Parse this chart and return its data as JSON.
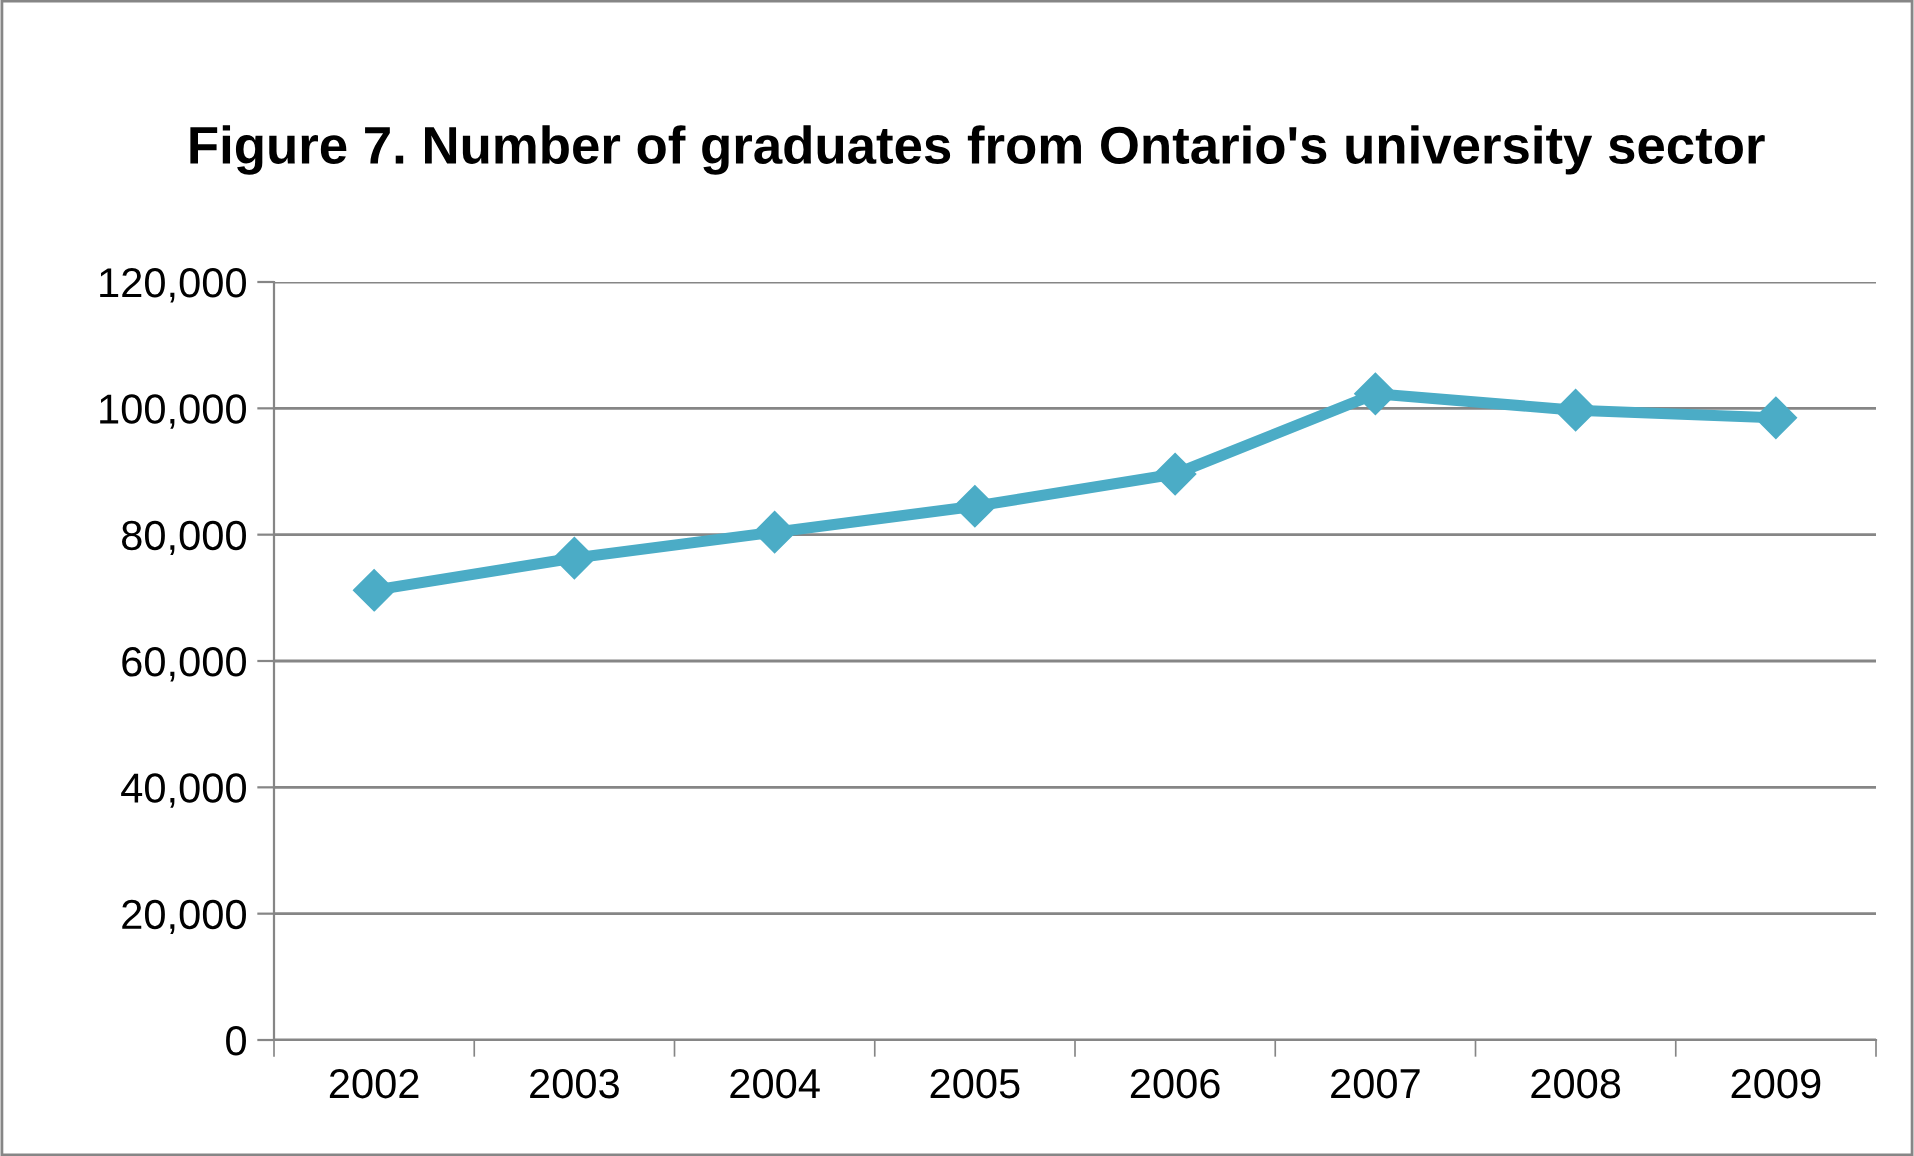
{
  "chart_data": {
    "type": "line",
    "title": "Figure 7. Number of graduates from Ontario's university sector",
    "categories": [
      "2002",
      "2003",
      "2004",
      "2005",
      "2006",
      "2007",
      "2008",
      "2009"
    ],
    "series": [
      {
        "color": "#4bacc6",
        "values": [
          71200,
          76300,
          80400,
          84500,
          89600,
          102300,
          99700,
          98500
        ]
      }
    ],
    "ylim": [
      0,
      120000
    ],
    "yticks": [
      0,
      {
        "value": 20000,
        "label": "20,000"
      },
      {
        "value": 40000,
        "label": "40,000"
      },
      {
        "value": 60000,
        "label": "60,000"
      },
      {
        "value": 80000,
        "label": "80,000"
      },
      {
        "value": 100000,
        "label": "100,000"
      },
      {
        "value": 120000,
        "label": "120,000"
      }
    ],
    "grid": "y",
    "legend": false,
    "marker": "diamond",
    "line_style": "solid"
  }
}
